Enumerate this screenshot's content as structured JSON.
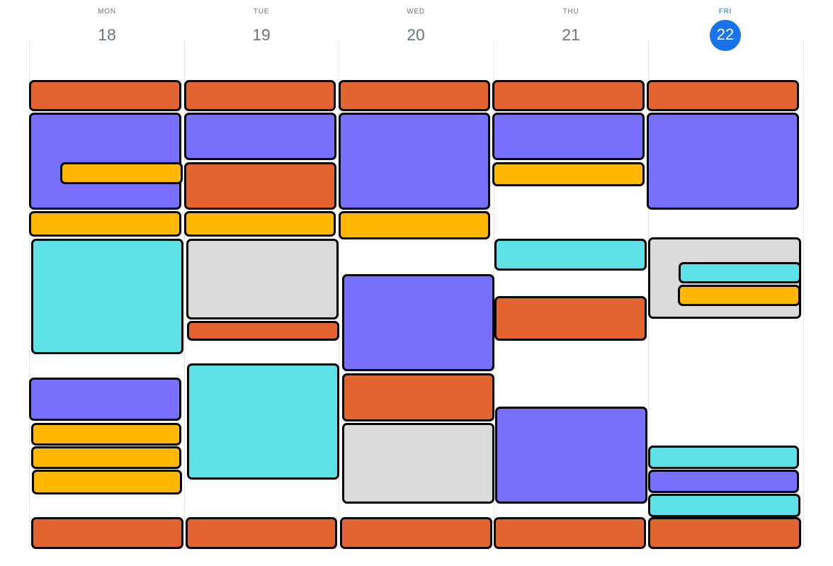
{
  "colors": {
    "orange": "#e16431",
    "purple": "#7770fe",
    "yellow": "#ffb700",
    "cyan": "#5ee1e6",
    "gray": "#dadada",
    "today_accent": "#1a73e8"
  },
  "days": [
    {
      "dow": "MON",
      "date": "18",
      "today": false
    },
    {
      "dow": "TUE",
      "date": "19",
      "today": false
    },
    {
      "dow": "WED",
      "date": "20",
      "today": false
    },
    {
      "dow": "THU",
      "date": "21",
      "today": false
    },
    {
      "dow": "FRI",
      "date": "22",
      "today": true
    }
  ],
  "events": [
    {
      "day": "MON",
      "color": "orange"
    },
    {
      "day": "MON",
      "color": "purple"
    },
    {
      "day": "MON",
      "color": "yellow"
    },
    {
      "day": "MON",
      "color": "yellow"
    },
    {
      "day": "MON",
      "color": "cyan"
    },
    {
      "day": "MON",
      "color": "purple"
    },
    {
      "day": "MON",
      "color": "yellow"
    },
    {
      "day": "MON",
      "color": "yellow"
    },
    {
      "day": "MON",
      "color": "yellow"
    },
    {
      "day": "MON",
      "color": "orange"
    },
    {
      "day": "TUE",
      "color": "orange"
    },
    {
      "day": "TUE",
      "color": "purple"
    },
    {
      "day": "TUE",
      "color": "orange"
    },
    {
      "day": "TUE",
      "color": "yellow"
    },
    {
      "day": "TUE",
      "color": "gray"
    },
    {
      "day": "TUE",
      "color": "orange"
    },
    {
      "day": "TUE",
      "color": "cyan"
    },
    {
      "day": "TUE",
      "color": "orange"
    },
    {
      "day": "WED",
      "color": "orange"
    },
    {
      "day": "WED",
      "color": "purple"
    },
    {
      "day": "WED",
      "color": "yellow"
    },
    {
      "day": "WED",
      "color": "purple"
    },
    {
      "day": "WED",
      "color": "orange"
    },
    {
      "day": "WED",
      "color": "gray"
    },
    {
      "day": "WED",
      "color": "orange"
    },
    {
      "day": "THU",
      "color": "orange"
    },
    {
      "day": "THU",
      "color": "purple"
    },
    {
      "day": "THU",
      "color": "yellow"
    },
    {
      "day": "THU",
      "color": "cyan"
    },
    {
      "day": "THU",
      "color": "orange"
    },
    {
      "day": "THU",
      "color": "purple"
    },
    {
      "day": "THU",
      "color": "orange"
    },
    {
      "day": "FRI",
      "color": "orange"
    },
    {
      "day": "FRI",
      "color": "purple"
    },
    {
      "day": "FRI",
      "color": "gray"
    },
    {
      "day": "FRI",
      "color": "cyan"
    },
    {
      "day": "FRI",
      "color": "yellow"
    },
    {
      "day": "FRI",
      "color": "cyan"
    },
    {
      "day": "FRI",
      "color": "purple"
    },
    {
      "day": "FRI",
      "color": "cyan"
    },
    {
      "day": "FRI",
      "color": "orange"
    }
  ]
}
